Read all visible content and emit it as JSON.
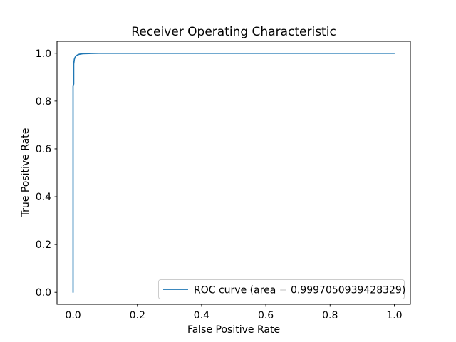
{
  "chart_data": {
    "type": "line",
    "title": "Receiver Operating Characteristic",
    "xlabel": "False Positive Rate",
    "ylabel": "True Positive Rate",
    "xlim": [
      -0.05,
      1.05
    ],
    "ylim": [
      -0.05,
      1.05
    ],
    "grid": false,
    "background_color": "#ffffff",
    "axis_color": "#000000",
    "xticks": {
      "values": [
        0.0,
        0.2,
        0.4,
        0.6,
        0.8,
        1.0
      ],
      "labels": [
        "0.0",
        "0.2",
        "0.4",
        "0.6",
        "0.8",
        "1.0"
      ]
    },
    "yticks": {
      "values": [
        0.0,
        0.2,
        0.4,
        0.6,
        0.8,
        1.0
      ],
      "labels": [
        "0.0",
        "0.2",
        "0.4",
        "0.6",
        "0.8",
        "1.0"
      ]
    },
    "legend": {
      "position": "lower right",
      "entries": [
        {
          "label": "ROC curve (area = 0.9997050939428329)",
          "color": "#1f77b4"
        }
      ]
    },
    "series": [
      {
        "name": "ROC curve",
        "color": "#1f77b4",
        "auc": 0.9997050939428329,
        "points": [
          [
            0.0,
            0.0
          ],
          [
            0.0,
            0.865
          ],
          [
            0.002,
            0.871
          ],
          [
            0.002,
            0.955
          ],
          [
            0.004,
            0.975
          ],
          [
            0.006,
            0.983
          ],
          [
            0.009,
            0.989
          ],
          [
            0.014,
            0.993
          ],
          [
            0.02,
            0.996
          ],
          [
            0.03,
            0.998
          ],
          [
            0.05,
            0.999
          ],
          [
            0.08,
            1.0
          ],
          [
            1.0,
            1.0
          ]
        ]
      }
    ]
  }
}
